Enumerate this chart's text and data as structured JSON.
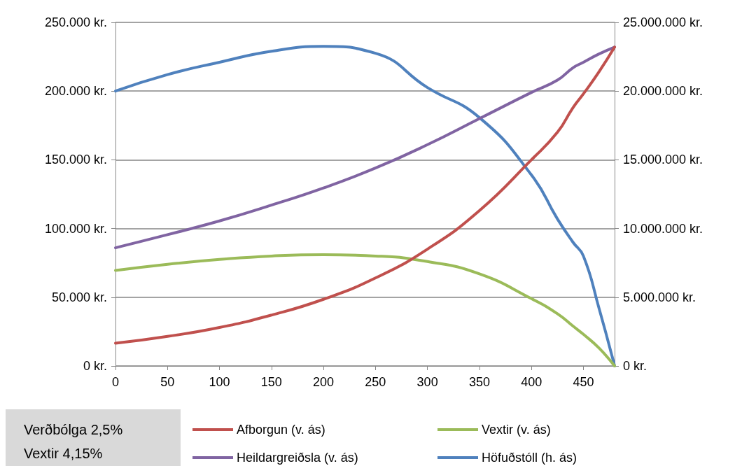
{
  "chart_data": {
    "type": "line",
    "x": [
      0,
      50,
      100,
      150,
      200,
      250,
      300,
      350,
      400,
      425,
      440,
      450,
      465,
      480
    ],
    "series": [
      {
        "name": "Afborgun (v. ás)",
        "color": "#c0504d",
        "values": [
          16500,
          21500,
          28000,
          37000,
          48500,
          64000,
          85000,
          113000,
          150000,
          170000,
          188000,
          198000,
          214000,
          232000
        ]
      },
      {
        "name": "Vextir (v. ás)",
        "color": "#9bbb59",
        "values": [
          69500,
          74000,
          77500,
          80000,
          81000,
          80000,
          76000,
          67000,
          49000,
          38000,
          29000,
          23000,
          13000,
          0
        ]
      },
      {
        "name": "Heildargreiðsla (v. ás)",
        "color": "#8064a2",
        "values": [
          86000,
          95500,
          105500,
          117000,
          129500,
          144000,
          161000,
          180000,
          199000,
          208000,
          217000,
          221000,
          227000,
          232000
        ]
      },
      {
        "name": "Höfuðstóll (h. ás)",
        "color": "#4f81bd",
        "axis": "y2",
        "values": [
          20000000,
          21200000,
          22100000,
          22900000,
          23250000,
          22750000,
          20260000,
          18070000,
          13900000,
          10700000,
          9000000,
          8000000,
          4200000,
          0
        ]
      }
    ],
    "xlim": [
      0,
      480
    ],
    "xticks": [
      0,
      50,
      100,
      150,
      200,
      250,
      300,
      350,
      400,
      450
    ],
    "ylim": [
      0,
      250000
    ],
    "yticks": [
      {
        "value": 0,
        "label": "0 kr."
      },
      {
        "value": 50000,
        "label": "50.000 kr."
      },
      {
        "value": 100000,
        "label": "100.000 kr."
      },
      {
        "value": 150000,
        "label": "150.000 kr."
      },
      {
        "value": 200000,
        "label": "200.000 kr."
      },
      {
        "value": 250000,
        "label": "250.000 kr."
      }
    ],
    "y2lim": [
      0,
      25000000
    ],
    "y2ticks": [
      {
        "value": 0,
        "label": "0 kr."
      },
      {
        "value": 5000000,
        "label": "5.000.000 kr."
      },
      {
        "value": 10000000,
        "label": "10.000.000 kr."
      },
      {
        "value": 15000000,
        "label": "15.000.000 kr."
      },
      {
        "value": 20000000,
        "label": "20.000.000 kr."
      },
      {
        "value": 25000000,
        "label": "25.000.000 kr."
      }
    ],
    "annotations": [
      "Verðbólga 2,5%",
      "Vextir 4,15%"
    ],
    "grid": "y",
    "legend": "bottom",
    "marker": "none",
    "line_style": "solid"
  }
}
